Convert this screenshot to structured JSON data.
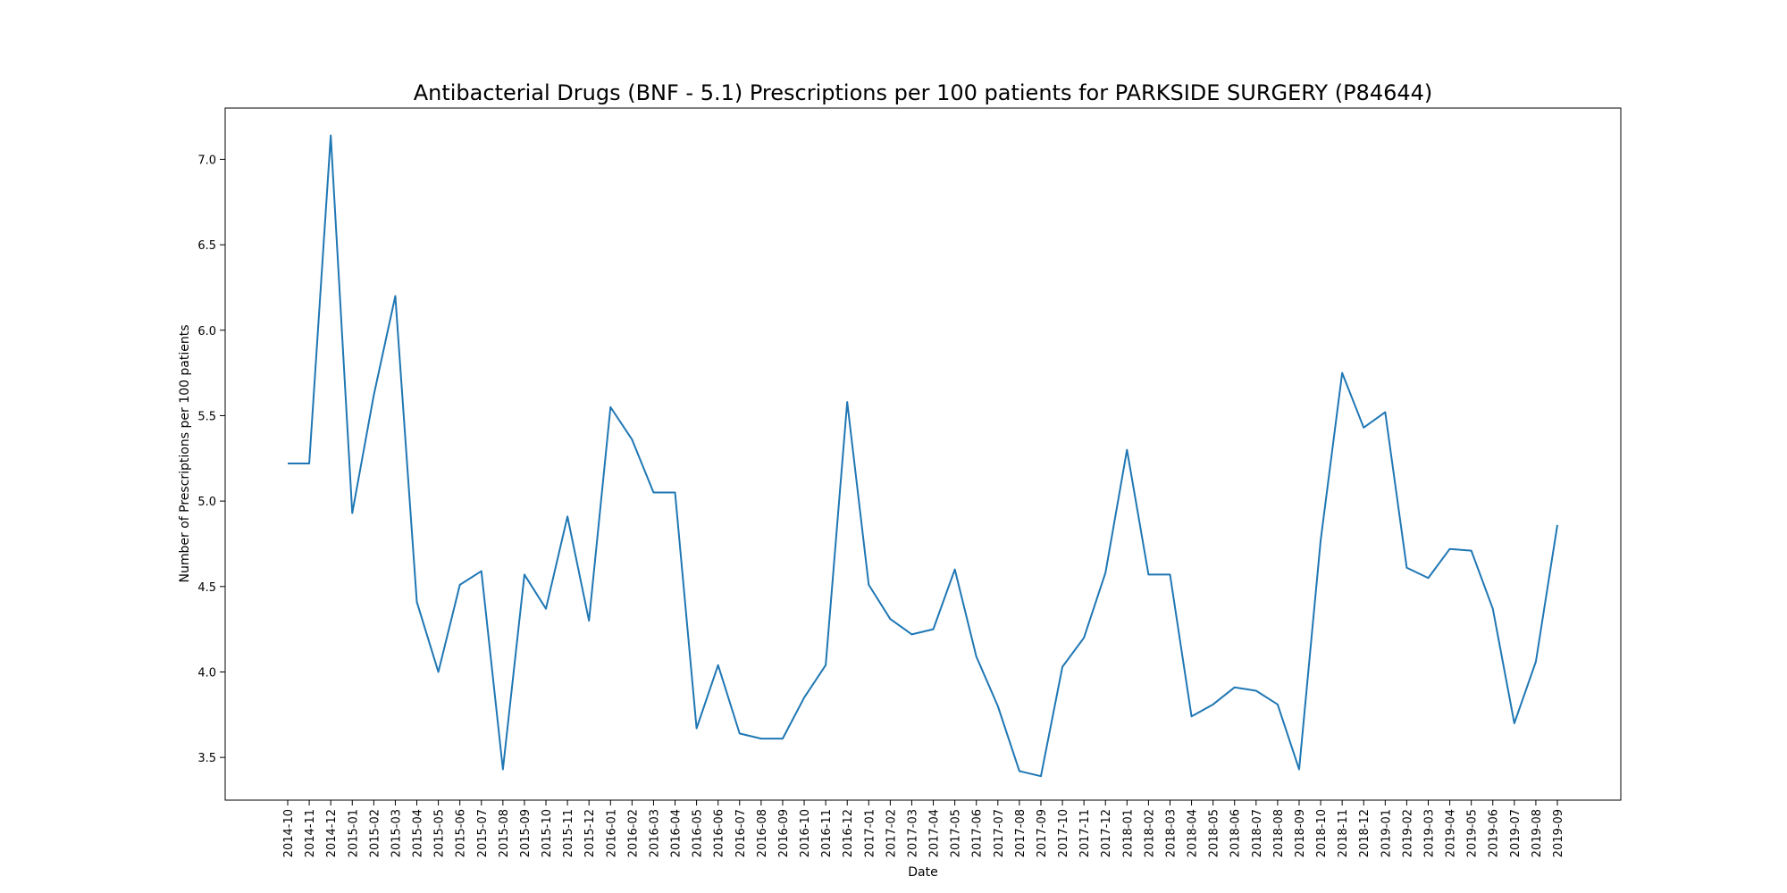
{
  "chart_data": {
    "type": "line",
    "title": "Antibacterial Drugs (BNF - 5.1) Prescriptions per 100 patients for PARKSIDE SURGERY (P84644)",
    "xlabel": "Date",
    "ylabel": "Number of Prescriptions per 100 patients",
    "ylim": [
      3.25,
      7.3
    ],
    "yticks": [
      "3.5",
      "4.0",
      "4.5",
      "5.0",
      "5.5",
      "6.0",
      "6.5",
      "7.0"
    ],
    "grid": false,
    "categories": [
      "2014-10",
      "2014-11",
      "2014-12",
      "2015-01",
      "2015-02",
      "2015-03",
      "2015-04",
      "2015-05",
      "2015-06",
      "2015-07",
      "2015-08",
      "2015-09",
      "2015-10",
      "2015-11",
      "2015-12",
      "2016-01",
      "2016-02",
      "2016-03",
      "2016-04",
      "2016-05",
      "2016-06",
      "2016-07",
      "2016-08",
      "2016-09",
      "2016-10",
      "2016-11",
      "2016-12",
      "2017-01",
      "2017-02",
      "2017-03",
      "2017-04",
      "2017-05",
      "2017-06",
      "2017-07",
      "2017-08",
      "2017-09",
      "2017-10",
      "2017-11",
      "2017-12",
      "2018-01",
      "2018-02",
      "2018-03",
      "2018-04",
      "2018-05",
      "2018-06",
      "2018-07",
      "2018-08",
      "2018-09",
      "2018-10",
      "2018-11",
      "2018-12",
      "2019-01",
      "2019-02",
      "2019-03",
      "2019-04",
      "2019-05",
      "2019-06",
      "2019-07",
      "2019-08",
      "2019-09"
    ],
    "series": [
      {
        "color": "#1f77b4",
        "values": [
          5.22,
          5.22,
          7.14,
          4.93,
          5.62,
          6.2,
          4.41,
          4.0,
          4.51,
          4.59,
          3.43,
          4.57,
          4.37,
          4.91,
          4.3,
          5.55,
          5.36,
          5.05,
          5.05,
          3.67,
          4.04,
          3.64,
          3.61,
          3.61,
          3.85,
          4.04,
          5.58,
          4.51,
          4.31,
          4.22,
          4.25,
          4.6,
          4.09,
          3.8,
          3.42,
          3.39,
          4.03,
          4.2,
          4.58,
          5.3,
          4.57,
          4.57,
          3.74,
          3.81,
          3.91,
          3.89,
          3.81,
          3.43,
          4.77,
          5.75,
          5.43,
          5.52,
          4.61,
          4.55,
          4.72,
          4.71,
          4.37,
          3.7,
          4.06,
          4.86
        ]
      }
    ]
  }
}
